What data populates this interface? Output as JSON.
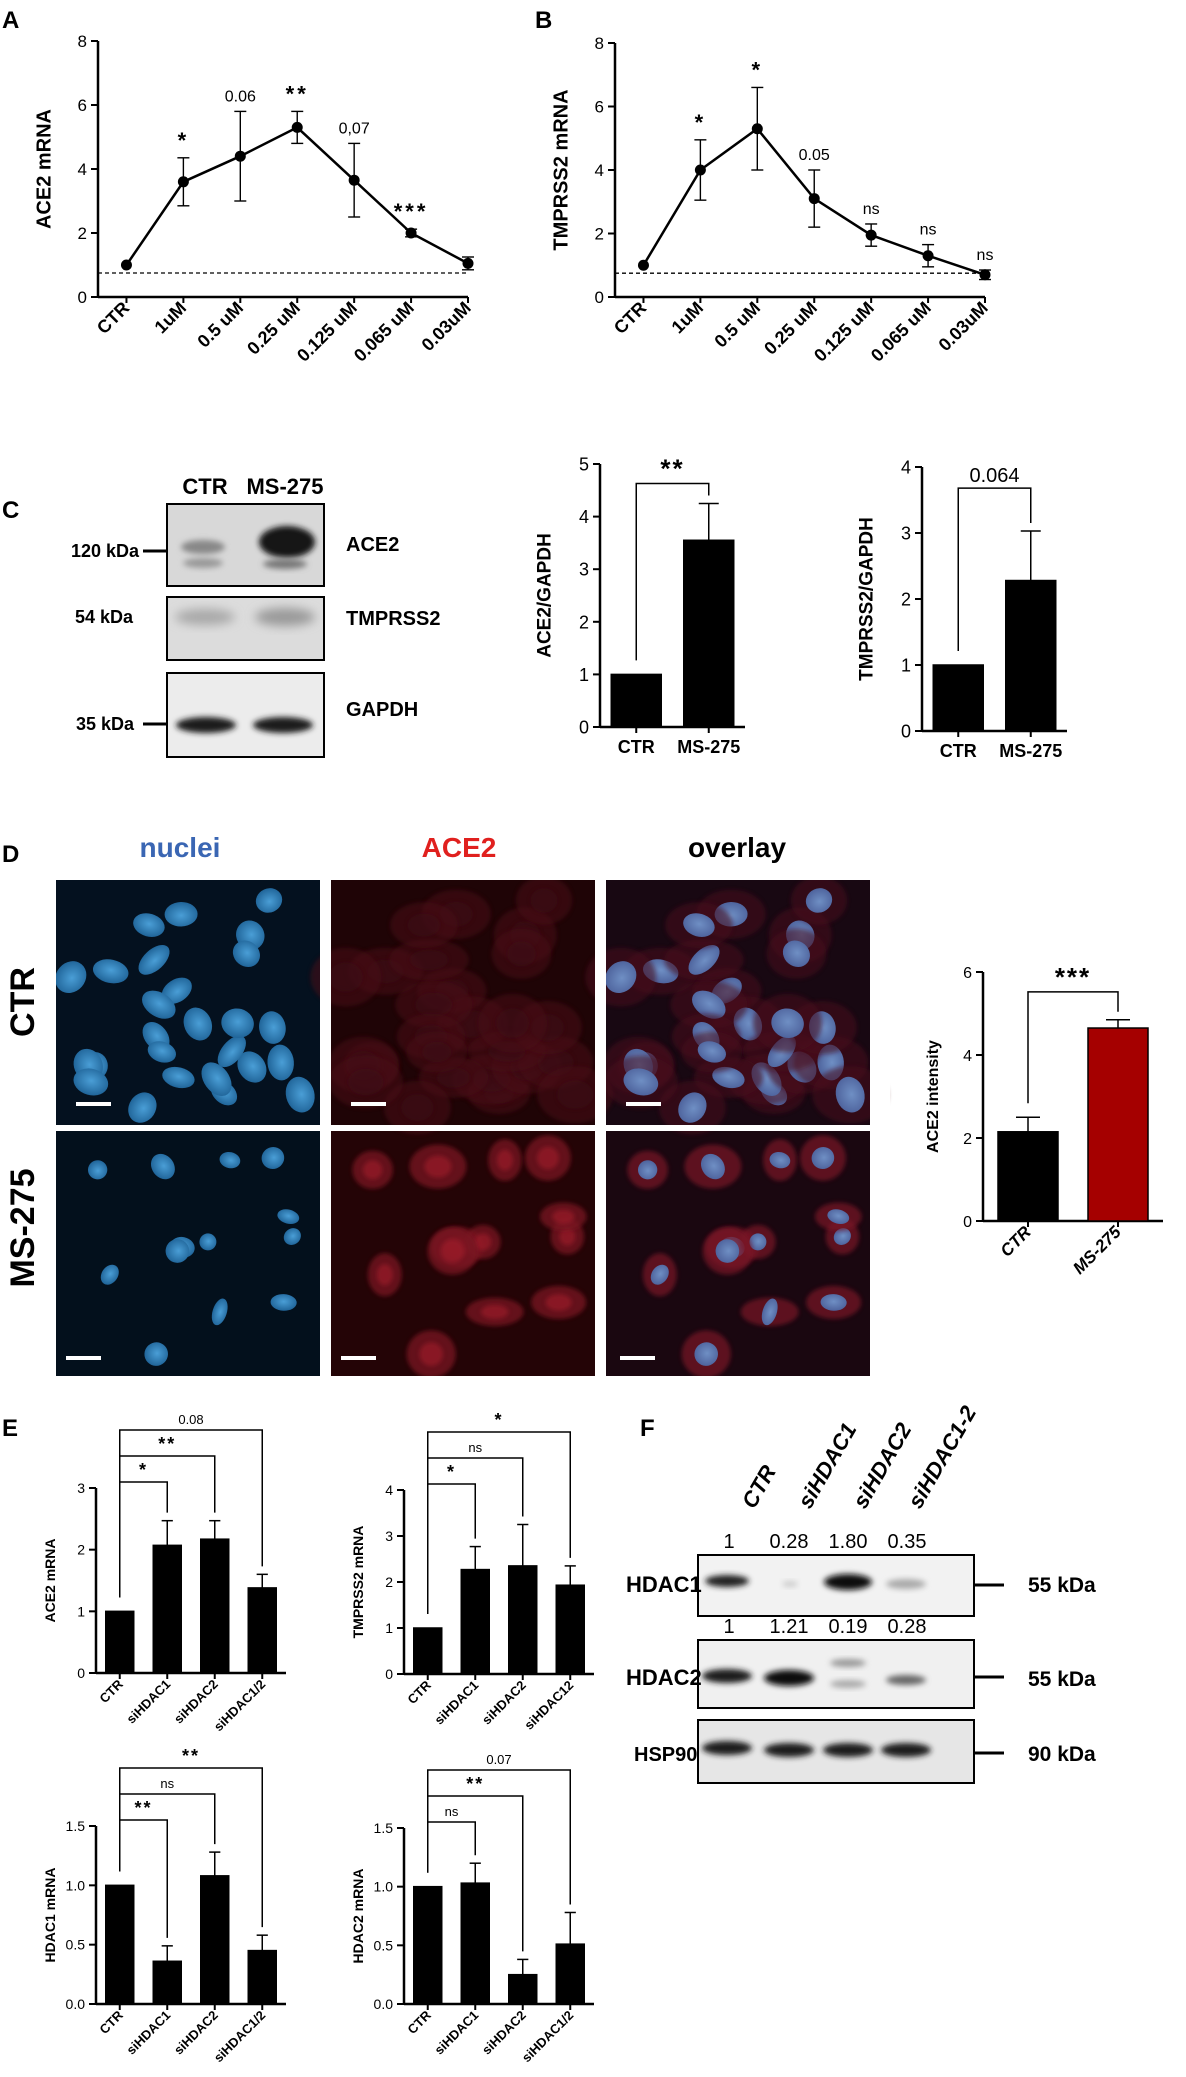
{
  "panel_labels": [
    "A",
    "B",
    "C",
    "D",
    "E",
    "F"
  ],
  "chart_data": [
    {
      "id": "A",
      "type": "line",
      "xlabel": "",
      "ylabel": "ACE2 mRNA",
      "categories": [
        "CTR",
        "1uM",
        "0.5 uM",
        "0.25 uM",
        "0.125 uM",
        "0.065 uM",
        "0.03uM"
      ],
      "values": [
        1.0,
        3.6,
        4.4,
        5.3,
        3.65,
        2.0,
        1.05
      ],
      "errors": [
        0,
        0.75,
        1.4,
        0.5,
        1.15,
        0.12,
        0.2
      ],
      "annotations": [
        "",
        "*",
        "0.06",
        "**",
        "0,07",
        "***",
        ""
      ],
      "baseline": 0.75,
      "yticks": [
        "0",
        "2",
        "4",
        "6",
        "8"
      ],
      "ylim": [
        0,
        8
      ]
    },
    {
      "id": "B",
      "type": "line",
      "xlabel": "",
      "ylabel": "TMPRSS2 mRNA",
      "categories": [
        "CTR",
        "1uM",
        "0.5 uM",
        "0.25 uM",
        "0.125 uM",
        "0.065 uM",
        "0.03uM"
      ],
      "values": [
        1.0,
        4.0,
        5.3,
        3.1,
        1.95,
        1.3,
        0.7
      ],
      "errors": [
        0,
        0.95,
        1.3,
        0.9,
        0.35,
        0.35,
        0.15
      ],
      "annotations": [
        "",
        "*",
        "*",
        "0.05",
        "ns",
        "ns",
        "ns"
      ],
      "baseline": 0.75,
      "yticks": [
        "0",
        "2",
        "4",
        "6",
        "8"
      ],
      "ylim": [
        0,
        8
      ]
    },
    {
      "id": "C1",
      "type": "bar",
      "ylabel": "ACE2/GAPDH",
      "categories": [
        "CTR",
        "MS-275"
      ],
      "values": [
        1.0,
        3.55
      ],
      "errors": [
        0,
        0.7
      ],
      "yticks": [
        "0",
        "1",
        "2",
        "3",
        "4",
        "5"
      ],
      "ylim": [
        0,
        5
      ],
      "sig": [
        {
          "from": 0,
          "to": 1,
          "label": "**"
        }
      ]
    },
    {
      "id": "C2",
      "type": "bar",
      "ylabel": "TMPRSS2/GAPDH",
      "categories": [
        "CTR",
        "MS-275"
      ],
      "values": [
        1.0,
        2.28
      ],
      "errors": [
        0,
        0.75
      ],
      "yticks": [
        "0",
        "1",
        "2",
        "3",
        "4"
      ],
      "ylim": [
        0,
        4
      ],
      "sig": [
        {
          "from": 0,
          "to": 1,
          "label": "0.064"
        }
      ]
    },
    {
      "id": "D",
      "type": "bar",
      "ylabel": "ACE2  intensity",
      "categories": [
        "CTR",
        "MS-275"
      ],
      "values": [
        2.15,
        4.65
      ],
      "errors": [
        0.35,
        0.2
      ],
      "colors": [
        "#000000",
        "#a50000"
      ],
      "yticks": [
        "0",
        "2",
        "4",
        "6"
      ],
      "ylim": [
        0,
        6
      ],
      "sig": [
        {
          "from": 0,
          "to": 1,
          "label": "***"
        }
      ]
    },
    {
      "id": "E1",
      "type": "bar",
      "ylabel": "ACE2 mRNA",
      "categories": [
        "CTR",
        "siHDAC1",
        "siHDAC2",
        "siHDAC1/2"
      ],
      "values": [
        1.0,
        2.07,
        2.17,
        1.38
      ],
      "errors": [
        0,
        0.4,
        0.3,
        0.22
      ],
      "yticks": [
        "0",
        "1",
        "2",
        "3"
      ],
      "ylim": [
        0,
        3
      ],
      "sig": [
        {
          "from": 0,
          "to": 1,
          "label": "*"
        },
        {
          "from": 0,
          "to": 2,
          "label": "**"
        },
        {
          "from": 0,
          "to": 3,
          "label": "0.08"
        }
      ]
    },
    {
      "id": "E2",
      "type": "bar",
      "ylabel": "TMPRSS2 mRNA",
      "categories": [
        "CTR",
        "siHDAC1",
        "siHDAC2",
        "siHDAC12"
      ],
      "values": [
        1.0,
        2.27,
        2.35,
        1.93
      ],
      "errors": [
        0,
        0.5,
        0.9,
        0.42
      ],
      "yticks": [
        "0",
        "1",
        "2",
        "3",
        "4"
      ],
      "ylim": [
        0,
        4
      ],
      "sig": [
        {
          "from": 0,
          "to": 1,
          "label": "*"
        },
        {
          "from": 0,
          "to": 2,
          "label": "ns"
        },
        {
          "from": 0,
          "to": 3,
          "label": "*"
        }
      ]
    },
    {
      "id": "E3",
      "type": "bar",
      "ylabel": "HDAC1 mRNA",
      "categories": [
        "CTR",
        "siHDAC1",
        "siHDAC2",
        "siHDAC1/2"
      ],
      "values": [
        1.0,
        0.36,
        1.08,
        0.45
      ],
      "errors": [
        0,
        0.13,
        0.2,
        0.13
      ],
      "yticks": [
        "0.0",
        "0.5",
        "1.0",
        "1.5"
      ],
      "ylim": [
        0,
        1.5
      ],
      "sig": [
        {
          "from": 0,
          "to": 1,
          "label": "**"
        },
        {
          "from": 0,
          "to": 2,
          "label": "ns"
        },
        {
          "from": 0,
          "to": 3,
          "label": "**"
        }
      ]
    },
    {
      "id": "E4",
      "type": "bar",
      "ylabel": "HDAC2 mRNA",
      "categories": [
        "CTR",
        "siHDAC1",
        "siHDAC2",
        "siHDAC1/2"
      ],
      "values": [
        1.0,
        1.03,
        0.25,
        0.51
      ],
      "errors": [
        0,
        0.17,
        0.13,
        0.27
      ],
      "yticks": [
        "0.0",
        "0.5",
        "1.0",
        "1.5"
      ],
      "ylim": [
        0,
        1.5
      ],
      "sig": [
        {
          "from": 0,
          "to": 1,
          "label": "ns"
        },
        {
          "from": 0,
          "to": 2,
          "label": "**"
        },
        {
          "from": 0,
          "to": 3,
          "label": "0.07"
        }
      ]
    }
  ],
  "blot_c": {
    "lanes": [
      "CTR",
      "MS-275"
    ],
    "rows": [
      {
        "protein": "ACE2",
        "size": "120 kDa"
      },
      {
        "protein": "TMPRSS2",
        "size": "54 kDa"
      },
      {
        "protein": "GAPDH",
        "size": "35 kDa"
      }
    ]
  },
  "microscopy_d": {
    "columns": [
      {
        "label": "nuclei",
        "color": "#3a66b3"
      },
      {
        "label": "ACE2",
        "color": "#e0201e"
      },
      {
        "label": "overlay",
        "color": "#000000"
      }
    ],
    "rows": [
      "CTR",
      "MS-275"
    ]
  },
  "blot_f": {
    "lanes": [
      "CTR",
      "siHDAC1",
      "siHDAC2",
      "siHDAC1-2"
    ],
    "rows": [
      {
        "protein": "HDAC1",
        "size": "55 kDa",
        "quant": [
          "1",
          "0.28",
          "1.80",
          "0.35"
        ]
      },
      {
        "protein": "HDAC2",
        "size": "55 kDa",
        "quant": [
          "1",
          "1.21",
          "0.19",
          "0.28"
        ]
      },
      {
        "protein": "HSP90",
        "size": "90 kDa",
        "quant": []
      }
    ]
  }
}
